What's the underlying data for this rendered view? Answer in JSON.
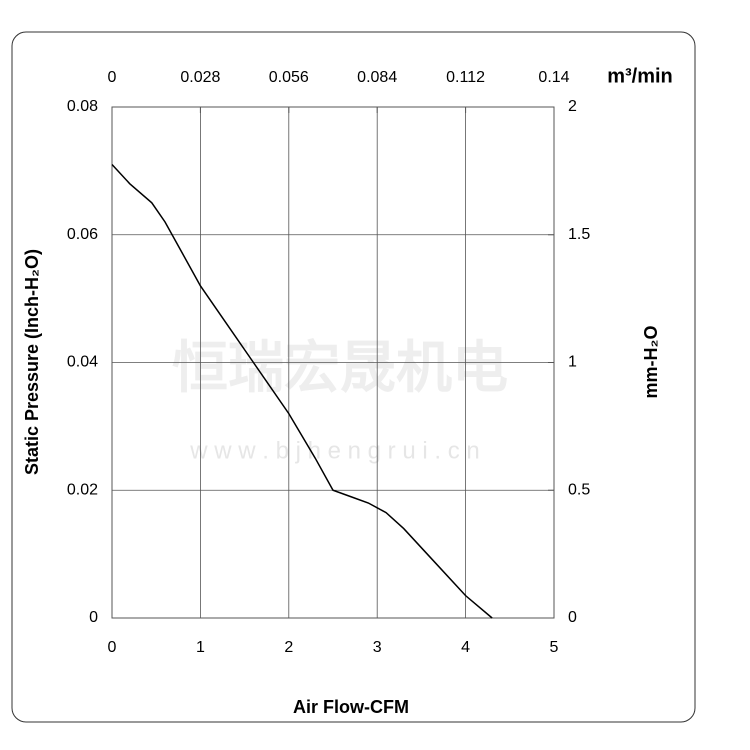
{
  "chart_data": {
    "type": "line",
    "xlabel": "Air Flow-CFM",
    "ylabel": "Static Pressure (Inch-H₂O)",
    "y2label": "mm-H₂O",
    "x2label": "m³/min",
    "watermark": [
      "恒瑞宏晟机电",
      "w w w . b j h e n g r u i . c n"
    ],
    "x": [
      0,
      0.2,
      0.45,
      0.6,
      0.8,
      1,
      1.3,
      1.6,
      2,
      2.3,
      2.5,
      2.7,
      2.9,
      3.1,
      3.3,
      3.6,
      4,
      4.3
    ],
    "values": [
      0.071,
      0.068,
      0.065,
      0.062,
      0.057,
      0.052,
      0.046,
      0.04,
      0.032,
      0.025,
      0.02,
      0.019,
      0.018,
      0.0165,
      0.014,
      0.0095,
      0.0035,
      0
    ],
    "color": "#000000",
    "xlim": [
      0,
      5
    ],
    "xticks": [
      0,
      1,
      2,
      3,
      4,
      5
    ],
    "ylim": [
      0,
      0.08
    ],
    "yticks": [
      0,
      0.02,
      0.04,
      0.06,
      0.08
    ],
    "x2lim": [
      0,
      0.14
    ],
    "x2ticks": [
      0,
      0.028,
      0.056,
      0.084,
      0.112,
      0.14
    ],
    "y2lim": [
      0,
      2
    ],
    "y2ticks": [
      0,
      0.5,
      1,
      1.5,
      2
    ],
    "grid": true
  }
}
